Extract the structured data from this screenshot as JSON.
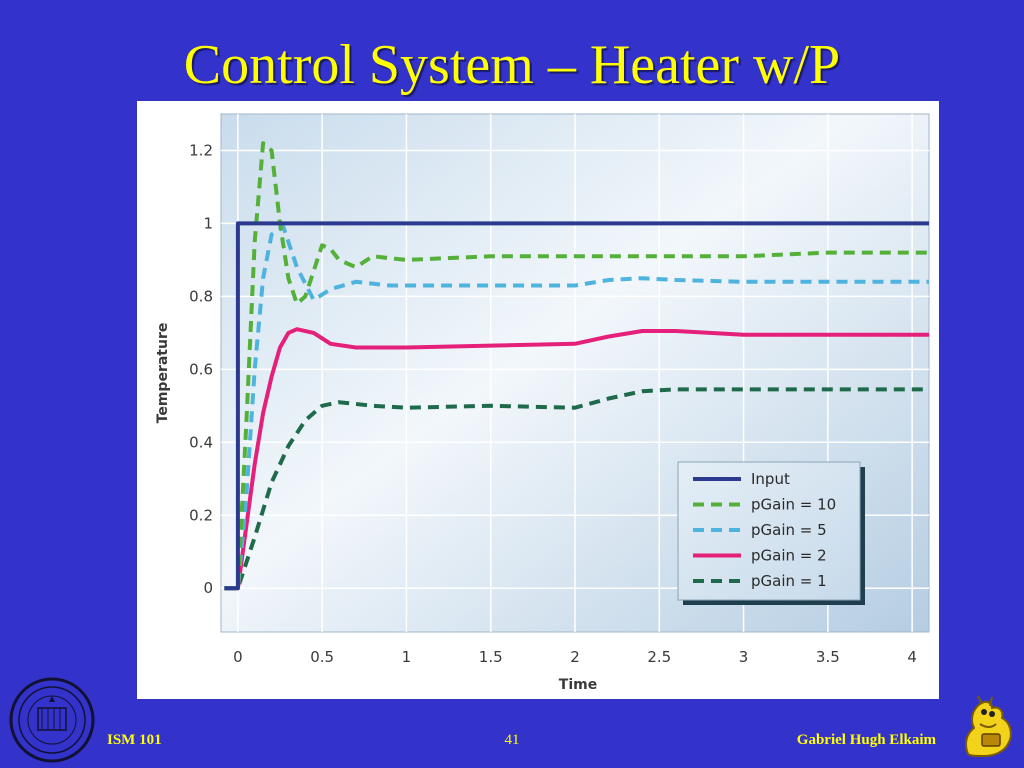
{
  "slide": {
    "title": "Control System – Heater w/P",
    "footer_left": "ISM 101",
    "page_number": "41",
    "footer_right": "Gabriel Hugh Elkaim",
    "colors": {
      "background": "#3333cc",
      "text": "#ffff00"
    },
    "icons": {
      "left": "university-seal-icon",
      "right": "banana-slug-mascot-icon"
    }
  },
  "chart_data": {
    "type": "line",
    "title": "",
    "xlabel": "Time",
    "ylabel": "Temperature",
    "xlim": [
      -0.1,
      4.1
    ],
    "ylim": [
      -0.12,
      1.3
    ],
    "xticks": [
      "0",
      "0.5",
      "1",
      "1.5",
      "2",
      "2.5",
      "3",
      "3.5",
      "4"
    ],
    "yticks": [
      "0",
      "0.2",
      "0.4",
      "0.6",
      "0.8",
      "1",
      "1.2"
    ],
    "grid": true,
    "legend_position": "bottom-right",
    "series": [
      {
        "name": "Input",
        "color": "#2b3a8f",
        "style": "solid",
        "width": 4,
        "points": [
          [
            -0.08,
            0
          ],
          [
            0.0,
            0
          ],
          [
            0.0,
            1.0
          ],
          [
            4.1,
            1.0
          ]
        ]
      },
      {
        "name": "pGain = 10",
        "color": "#55b03a",
        "style": "dashed",
        "width": 4,
        "points": [
          [
            -0.08,
            0
          ],
          [
            0.0,
            0
          ],
          [
            0.05,
            0.45
          ],
          [
            0.1,
            0.95
          ],
          [
            0.15,
            1.22
          ],
          [
            0.2,
            1.2
          ],
          [
            0.25,
            1.0
          ],
          [
            0.3,
            0.85
          ],
          [
            0.35,
            0.78
          ],
          [
            0.4,
            0.8
          ],
          [
            0.5,
            0.94
          ],
          [
            0.55,
            0.93
          ],
          [
            0.6,
            0.9
          ],
          [
            0.7,
            0.88
          ],
          [
            0.8,
            0.91
          ],
          [
            1.0,
            0.9
          ],
          [
            1.5,
            0.91
          ],
          [
            2.0,
            0.91
          ],
          [
            2.5,
            0.91
          ],
          [
            3.0,
            0.91
          ],
          [
            3.5,
            0.92
          ],
          [
            4.1,
            0.92
          ]
        ]
      },
      {
        "name": "pGain = 5",
        "color": "#4fb3df",
        "style": "dashed",
        "width": 4,
        "points": [
          [
            -0.08,
            0
          ],
          [
            0.0,
            0
          ],
          [
            0.05,
            0.25
          ],
          [
            0.1,
            0.6
          ],
          [
            0.15,
            0.85
          ],
          [
            0.2,
            0.97
          ],
          [
            0.27,
            0.99
          ],
          [
            0.35,
            0.88
          ],
          [
            0.45,
            0.79
          ],
          [
            0.55,
            0.82
          ],
          [
            0.7,
            0.84
          ],
          [
            0.9,
            0.83
          ],
          [
            1.5,
            0.83
          ],
          [
            2.0,
            0.83
          ],
          [
            2.2,
            0.845
          ],
          [
            2.4,
            0.85
          ],
          [
            2.6,
            0.845
          ],
          [
            3.0,
            0.84
          ],
          [
            3.5,
            0.84
          ],
          [
            4.1,
            0.84
          ]
        ]
      },
      {
        "name": "pGain = 2",
        "color": "#e4207a",
        "style": "solid",
        "width": 4,
        "points": [
          [
            -0.08,
            0
          ],
          [
            0.0,
            0
          ],
          [
            0.05,
            0.17
          ],
          [
            0.1,
            0.34
          ],
          [
            0.15,
            0.48
          ],
          [
            0.2,
            0.58
          ],
          [
            0.25,
            0.66
          ],
          [
            0.3,
            0.7
          ],
          [
            0.35,
            0.71
          ],
          [
            0.45,
            0.7
          ],
          [
            0.55,
            0.67
          ],
          [
            0.7,
            0.66
          ],
          [
            1.0,
            0.66
          ],
          [
            1.5,
            0.665
          ],
          [
            2.0,
            0.67
          ],
          [
            2.2,
            0.69
          ],
          [
            2.4,
            0.705
          ],
          [
            2.6,
            0.705
          ],
          [
            3.0,
            0.695
          ],
          [
            3.5,
            0.695
          ],
          [
            4.1,
            0.695
          ]
        ]
      },
      {
        "name": "pGain = 1",
        "color": "#1e6a4a",
        "style": "dashed",
        "width": 4,
        "points": [
          [
            -0.08,
            0
          ],
          [
            0.0,
            0
          ],
          [
            0.1,
            0.14
          ],
          [
            0.2,
            0.29
          ],
          [
            0.3,
            0.39
          ],
          [
            0.4,
            0.46
          ],
          [
            0.5,
            0.5
          ],
          [
            0.6,
            0.51
          ],
          [
            0.8,
            0.5
          ],
          [
            1.0,
            0.495
          ],
          [
            1.5,
            0.5
          ],
          [
            2.0,
            0.495
          ],
          [
            2.2,
            0.52
          ],
          [
            2.4,
            0.54
          ],
          [
            2.6,
            0.545
          ],
          [
            3.0,
            0.545
          ],
          [
            3.5,
            0.545
          ],
          [
            4.1,
            0.545
          ]
        ]
      }
    ]
  }
}
